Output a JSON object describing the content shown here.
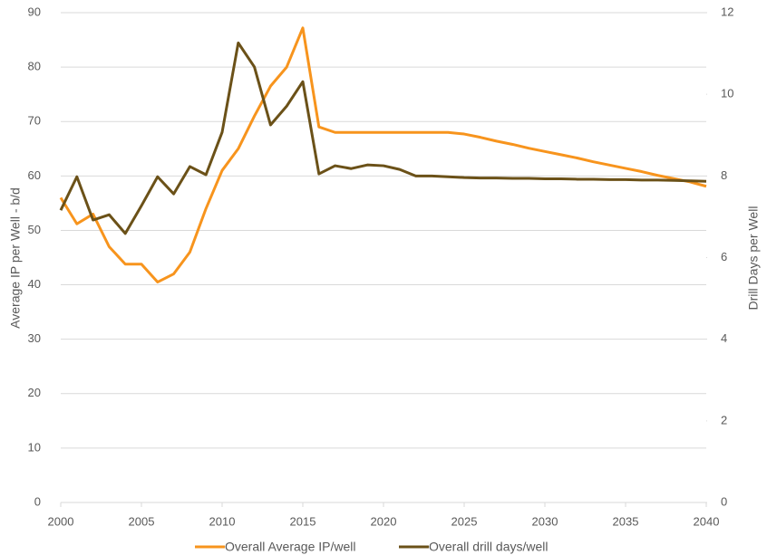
{
  "chart_data": {
    "type": "line",
    "x": [
      2000,
      2001,
      2002,
      2003,
      2004,
      2005,
      2006,
      2007,
      2008,
      2009,
      2010,
      2011,
      2012,
      2013,
      2014,
      2015,
      2016,
      2017,
      2018,
      2019,
      2020,
      2021,
      2022,
      2023,
      2024,
      2025,
      2026,
      2027,
      2028,
      2029,
      2030,
      2031,
      2032,
      2033,
      2034,
      2035,
      2036,
      2037,
      2038,
      2039,
      2040
    ],
    "series": [
      {
        "name": "Overall Average IP/well",
        "color": "#f7941d",
        "axis": "y",
        "values": [
          56,
          51.2,
          53,
          47,
          43.8,
          43.8,
          40.5,
          42,
          46,
          54,
          61,
          65,
          71,
          76.5,
          80,
          87.2,
          69,
          68,
          68,
          68,
          68,
          68,
          68,
          68,
          68,
          67.7,
          67.1,
          66.4,
          65.8,
          65.1,
          64.5,
          63.9,
          63.3,
          62.6,
          62.0,
          61.4,
          60.8,
          60.1,
          59.5,
          58.9,
          58.1
        ]
      },
      {
        "name": "Overall drill days/well",
        "color": "#6b5118",
        "axis": "y2",
        "values": [
          7.16,
          7.98,
          6.92,
          7.05,
          6.59,
          7.27,
          7.98,
          7.56,
          8.23,
          8.03,
          9.07,
          11.26,
          10.67,
          9.25,
          9.71,
          10.31,
          8.05,
          8.25,
          8.18,
          8.27,
          8.25,
          8.16,
          8.0,
          8.0,
          7.98,
          7.96,
          7.95,
          7.95,
          7.94,
          7.94,
          7.93,
          7.93,
          7.92,
          7.92,
          7.91,
          7.91,
          7.9,
          7.9,
          7.89,
          7.88,
          7.87
        ]
      }
    ],
    "xlim": [
      2000,
      2040
    ],
    "xticks": [
      2000,
      2005,
      2010,
      2015,
      2020,
      2025,
      2030,
      2035,
      2040
    ],
    "ylim": [
      0,
      90
    ],
    "yticks": [
      0,
      10,
      20,
      30,
      40,
      50,
      60,
      70,
      80,
      90
    ],
    "y2lim": [
      0,
      12
    ],
    "y2ticks": [
      0,
      2,
      4,
      6,
      8,
      10,
      12
    ],
    "y_label": "Average IP per Well - b/d",
    "y2_label": "Drill Days per Well",
    "grid": true
  }
}
